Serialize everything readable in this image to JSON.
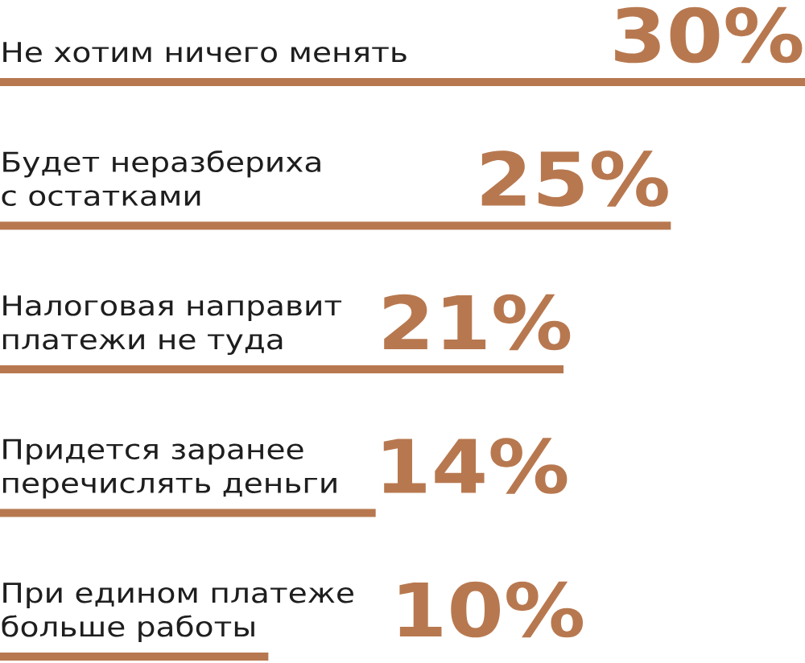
{
  "chart_data": {
    "type": "bar",
    "orientation": "horizontal",
    "tick_labels": "y",
    "color": "#b8784f",
    "categories": [
      "Не хотим ничего менять",
      "Будет неразбериха\nс остатками",
      "Налоговая направит\nплатежи не туда",
      "Придется заранее\nперечислять деньги",
      "При едином платеже\nбольше работы"
    ],
    "values": [
      30,
      25,
      21,
      14,
      10
    ],
    "value_labels": [
      "30%",
      "25%",
      "21%",
      "14%",
      "10%"
    ]
  }
}
